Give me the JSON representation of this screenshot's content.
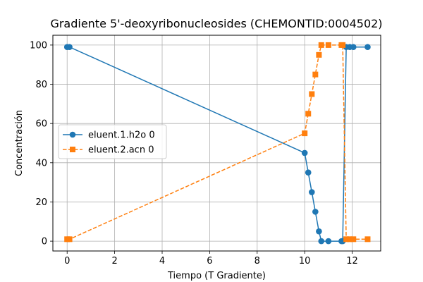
{
  "chart_data": {
    "type": "line",
    "title": "Gradiente 5'-deoxyribonucleosides (CHEMONTID:0004502)",
    "xlabel": "Tiempo (T Gradiente)",
    "ylabel": "Concentración",
    "xlim": [
      -0.6,
      13.2
    ],
    "ylim": [
      -5,
      105
    ],
    "xticks": [
      0,
      2,
      4,
      6,
      8,
      10,
      12
    ],
    "yticks": [
      0,
      20,
      40,
      60,
      80,
      100
    ],
    "grid": true,
    "legend_position": "center-left",
    "series": [
      {
        "name": "eluent.1.h2o 0",
        "color": "#1f77b4",
        "linestyle": "solid",
        "marker": "circle",
        "x": [
          0,
          0.1,
          10,
          10.15,
          10.3,
          10.45,
          10.6,
          10.7,
          11.0,
          11.55,
          11.6,
          11.75,
          11.9,
          12.05,
          12.65
        ],
        "y": [
          99,
          99,
          45,
          35,
          25,
          15,
          5,
          0,
          0,
          0,
          0,
          99,
          99,
          99,
          99
        ]
      },
      {
        "name": "eluent.2.acn 0",
        "color": "#ff7f0e",
        "linestyle": "dashed",
        "marker": "square",
        "x": [
          0,
          0.1,
          10,
          10.15,
          10.3,
          10.45,
          10.6,
          10.7,
          11.0,
          11.55,
          11.6,
          11.75,
          11.9,
          12.05,
          12.65
        ],
        "y": [
          1,
          1,
          55,
          65,
          75,
          85,
          95,
          100,
          100,
          100,
          100,
          1,
          1,
          1,
          1
        ]
      }
    ]
  }
}
